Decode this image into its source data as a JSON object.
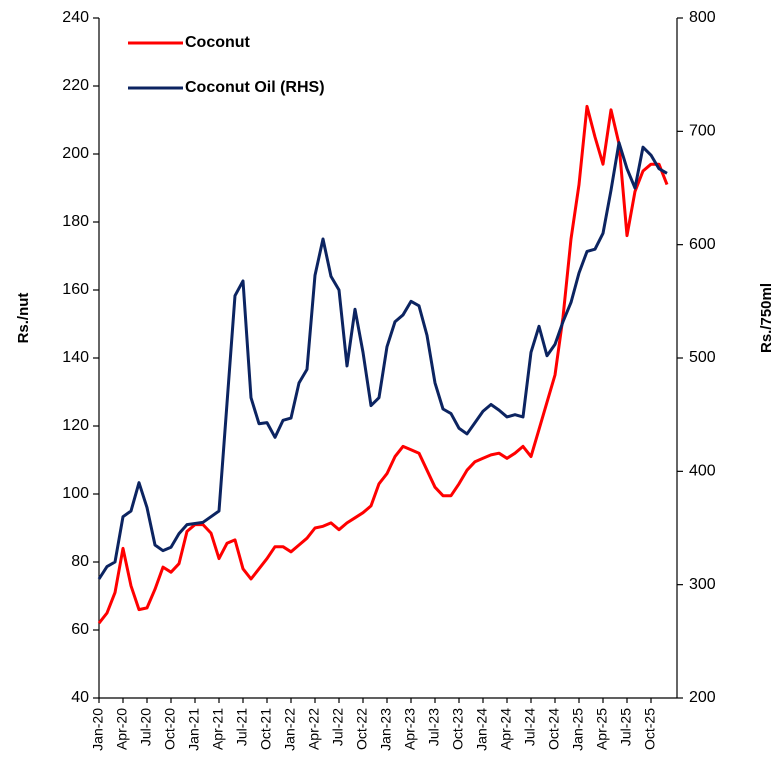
{
  "chart_data": {
    "type": "line",
    "categories": [
      "Jan-20",
      null,
      null,
      "Apr-20",
      null,
      null,
      "Jul-20",
      null,
      null,
      "Oct-20",
      null,
      null,
      "Jan-21",
      null,
      null,
      "Apr-21",
      null,
      null,
      "Jul-21",
      null,
      null,
      "Oct-21",
      null,
      null,
      "Jan-22",
      null,
      null,
      "Apr-22",
      null,
      null,
      "Jul-22",
      null,
      null,
      "Oct-22",
      null,
      null,
      "Jan-23",
      null,
      null,
      "Apr-23",
      null,
      null,
      "Jul-23",
      null,
      null,
      "Oct-23",
      null,
      null,
      "Jan-24",
      null,
      null,
      "Apr-24",
      null,
      null,
      "Jul-24",
      null,
      null,
      "Oct-24",
      null,
      null,
      "Jan-25",
      null,
      null,
      "Apr-25",
      null,
      null,
      "Jul-25",
      null,
      null,
      "Oct-25",
      null,
      null
    ],
    "series": [
      {
        "name": "Coconut",
        "color": "#ff0000",
        "axis": "y",
        "values": [
          62,
          65,
          71,
          84,
          73,
          66,
          66.5,
          72,
          78.5,
          77,
          79.5,
          89,
          91,
          91,
          88.5,
          81,
          85.5,
          86.5,
          78,
          75,
          78,
          81,
          84.5,
          84.5,
          83,
          85,
          87,
          90,
          90.5,
          91.5,
          89.5,
          91.5,
          93,
          94.5,
          96.5,
          103,
          106,
          111,
          114,
          113,
          112,
          107,
          102,
          99.5,
          99.5,
          103,
          107,
          109.5,
          110.5,
          111.5,
          112,
          110.5,
          112,
          114,
          111,
          119,
          127,
          135,
          152,
          175,
          191,
          214,
          205,
          197,
          213,
          203,
          176,
          189,
          195,
          197,
          197,
          191
        ]
      },
      {
        "name": "Coconut Oil (RHS)",
        "color": "#0c2461",
        "axis": "y2",
        "values": [
          305,
          316,
          320,
          360,
          365,
          390,
          368,
          335,
          330,
          333,
          345,
          353,
          354,
          355,
          360,
          365,
          460,
          555,
          568,
          465,
          442,
          443,
          430,
          445,
          447,
          478,
          490,
          573,
          605,
          572,
          560,
          493,
          543,
          505,
          458,
          465,
          510,
          532,
          538,
          550,
          546,
          520,
          478,
          455,
          451,
          438,
          433,
          443,
          453,
          459,
          454,
          448,
          450,
          448,
          505,
          528,
          502,
          512,
          532,
          549,
          575,
          594,
          596,
          610,
          648,
          690,
          667,
          650,
          686,
          679,
          667,
          663
        ]
      }
    ],
    "ylabel": "Rs./nut",
    "y2label": "Rs./750ml",
    "ylim": [
      40,
      240
    ],
    "yticks": [
      40,
      60,
      80,
      100,
      120,
      140,
      160,
      180,
      200,
      220,
      240
    ],
    "y2lim": [
      200,
      800
    ],
    "y2ticks": [
      200,
      300,
      400,
      500,
      600,
      700,
      800
    ],
    "legend": "upper left",
    "grid": false
  }
}
